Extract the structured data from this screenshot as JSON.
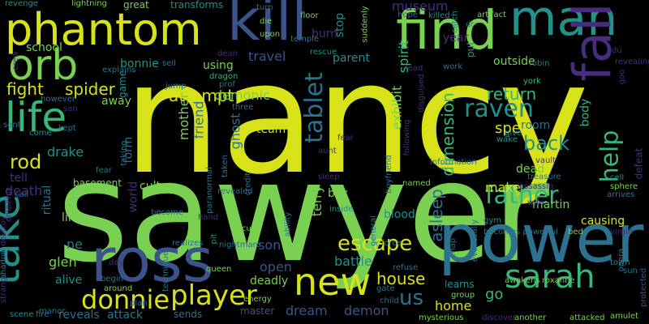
{
  "palette": {
    "background": "#000000",
    "yellow": "#d8e219",
    "lime": "#7ad151",
    "green": "#35b779",
    "teal": "#21918c",
    "blue": "#2c728e",
    "indigo": "#3b528b",
    "purple": "#472d7b",
    "violet": "#440154"
  },
  "words": [
    {
      "text": "nancy",
      "color": "#d8e219"
    },
    {
      "text": "sawyer",
      "color": "#7ad151"
    },
    {
      "text": "power",
      "color": "#2c728e"
    },
    {
      "text": "ross",
      "color": "#3b528b"
    },
    {
      "text": "kill",
      "color": "#3b528b"
    },
    {
      "text": "find",
      "color": "#7ad151"
    },
    {
      "text": "phantom",
      "color": "#d8e219"
    },
    {
      "text": "man",
      "color": "#21918c"
    },
    {
      "text": "orb",
      "color": "#7ad151"
    },
    {
      "text": "life",
      "color": "#35b779"
    },
    {
      "text": "fall",
      "color": "#472d7b"
    },
    {
      "text": "take",
      "color": "#21918c"
    },
    {
      "text": "new",
      "color": "#d8e219"
    },
    {
      "text": "sarah",
      "color": "#35b779"
    },
    {
      "text": "player",
      "color": "#d8e219"
    },
    {
      "text": "donnie",
      "color": "#d8e219"
    },
    {
      "text": "father",
      "color": "#35b779"
    },
    {
      "text": "raven",
      "color": "#21918c"
    },
    {
      "text": "tablet",
      "color": "#2c728e"
    },
    {
      "text": "help",
      "color": "#35b779"
    },
    {
      "text": "escape",
      "color": "#d8e219"
    },
    {
      "text": "attempt",
      "color": "#d8e219"
    },
    {
      "text": "fight",
      "color": "#d8e219"
    },
    {
      "text": "spider",
      "color": "#d8e219"
    },
    {
      "text": "rod",
      "color": "#d8e219"
    },
    {
      "text": "us",
      "color": "#2c728e"
    },
    {
      "text": "house",
      "color": "#d8e219"
    },
    {
      "text": "back",
      "color": "#21918c"
    },
    {
      "text": "dimension",
      "color": "#35b779"
    },
    {
      "text": "asleep",
      "color": "#2c728e"
    },
    {
      "text": "return",
      "color": "#35b779"
    },
    {
      "text": "spell",
      "color": "#d8e219"
    },
    {
      "text": "museum",
      "color": "#472d7b"
    },
    {
      "text": "travel",
      "color": "#3b528b"
    },
    {
      "text": "demonic",
      "color": "#7ad151"
    },
    {
      "text": "mother",
      "color": "#7ad151"
    },
    {
      "text": "friend",
      "color": "#2c728e"
    },
    {
      "text": "ghost",
      "color": "#2c728e"
    },
    {
      "text": "exhibit",
      "color": "#7ad151"
    },
    {
      "text": "spirit",
      "color": "#35b779"
    },
    {
      "text": "dream",
      "color": "#3b528b"
    },
    {
      "text": "demon",
      "color": "#3b528b"
    },
    {
      "text": "home",
      "color": "#d8e219"
    },
    {
      "text": "go",
      "color": "#35b779"
    },
    {
      "text": "terry",
      "color": "#7ad151"
    },
    {
      "text": "son",
      "color": "#3b528b"
    },
    {
      "text": "open",
      "color": "#3b528b"
    },
    {
      "text": "battle",
      "color": "#21918c"
    },
    {
      "text": "glen",
      "color": "#7ad151"
    },
    {
      "text": "ne",
      "color": "#2c728e"
    },
    {
      "text": "death",
      "color": "#472d7b"
    },
    {
      "text": "drake",
      "color": "#21918c"
    },
    {
      "text": "world",
      "color": "#472d7b"
    },
    {
      "text": "cult",
      "color": "#7ad151"
    },
    {
      "text": "make",
      "color": "#d8e219"
    },
    {
      "text": "dead",
      "color": "#7ad151"
    },
    {
      "text": "martin",
      "color": "#7ad151"
    },
    {
      "text": "causing",
      "color": "#d8e219"
    },
    {
      "text": "body",
      "color": "#35b779"
    },
    {
      "text": "deadly",
      "color": "#7ad151"
    },
    {
      "text": "alive",
      "color": "#21918c"
    },
    {
      "text": "like",
      "color": "#7ad151"
    },
    {
      "text": "team",
      "color": "#d8e219"
    },
    {
      "text": "box",
      "color": "#7ad151"
    },
    {
      "text": "blood",
      "color": "#21918c"
    },
    {
      "text": "outside",
      "color": "#7ad151"
    },
    {
      "text": "room",
      "color": "#2c728e"
    },
    {
      "text": "learns",
      "color": "#21918c"
    },
    {
      "text": "master",
      "color": "#3b528b"
    },
    {
      "text": "sends",
      "color": "#2c728e"
    },
    {
      "text": "reveals",
      "color": "#2c728e"
    },
    {
      "text": "attack",
      "color": "#2c728e"
    },
    {
      "text": "ritual",
      "color": "#2c728e"
    },
    {
      "text": "away",
      "color": "#7ad151"
    },
    {
      "text": "form",
      "color": "#2c728e"
    },
    {
      "text": "using",
      "color": "#7ad151"
    },
    {
      "text": "bonnie",
      "color": "#21918c"
    },
    {
      "text": "school",
      "color": "#7ad151"
    },
    {
      "text": "game",
      "color": "#21918c"
    },
    {
      "text": "parent",
      "color": "#21918c"
    },
    {
      "text": "year",
      "color": "#472d7b"
    },
    {
      "text": "burn",
      "color": "#472d7b"
    },
    {
      "text": "stop",
      "color": "#21918c"
    },
    {
      "text": "basement",
      "color": "#7ad151"
    },
    {
      "text": "tell",
      "color": "#472d7b"
    },
    {
      "text": "revenge",
      "color": "#21918c"
    },
    {
      "text": "lightning",
      "color": "#7ad151"
    },
    {
      "text": "great",
      "color": "#7ad151"
    },
    {
      "text": "transforms",
      "color": "#21918c"
    },
    {
      "text": "turn",
      "color": "#2c728e"
    },
    {
      "text": "floor",
      "color": "#7ad151"
    },
    {
      "text": "upon",
      "color": "#7ad151"
    },
    {
      "text": "temple",
      "color": "#2c728e"
    },
    {
      "text": "die",
      "color": "#7ad151"
    },
    {
      "text": "suddenly",
      "color": "#7ad151"
    },
    {
      "text": "hope",
      "color": "#2c728e"
    },
    {
      "text": "killed",
      "color": "#21918c"
    },
    {
      "text": "artifact",
      "color": "#7ad151"
    },
    {
      "text": "put",
      "color": "#21918c"
    },
    {
      "text": "york",
      "color": "#35b779"
    },
    {
      "text": "robin",
      "color": "#2c728e"
    },
    {
      "text": "dragon",
      "color": "#35b779"
    },
    {
      "text": "rescue",
      "color": "#21918c"
    },
    {
      "text": "work",
      "color": "#2c728e"
    },
    {
      "text": "lead",
      "color": "#472d7b"
    },
    {
      "text": "catch",
      "color": "#21918c"
    },
    {
      "text": "give",
      "color": "#21918c"
    },
    {
      "text": "wake",
      "color": "#21918c"
    },
    {
      "text": "named",
      "color": "#7ad151"
    },
    {
      "text": "boyfriend",
      "color": "#2c728e"
    },
    {
      "text": "general",
      "color": "#2c728e"
    },
    {
      "text": "inside",
      "color": "#21918c"
    },
    {
      "text": "treasure",
      "color": "#2c728e"
    },
    {
      "text": "vault",
      "color": "#472d7b"
    },
    {
      "text": "assassin",
      "color": "#472d7b"
    },
    {
      "text": "wife",
      "color": "#472d7b"
    },
    {
      "text": "cell",
      "color": "#21918c"
    },
    {
      "text": "sphere",
      "color": "#7ad151"
    },
    {
      "text": "arrives",
      "color": "#2c728e"
    },
    {
      "text": "defeat",
      "color": "#472d7b"
    },
    {
      "text": "virgin",
      "color": "#472d7b"
    },
    {
      "text": "bed",
      "color": "#7ad151"
    },
    {
      "text": "becomes powerful",
      "color": "#2c728e"
    },
    {
      "text": "gym",
      "color": "#21918c"
    },
    {
      "text": "refuse",
      "color": "#2c728e"
    },
    {
      "text": "gate",
      "color": "#2c728e"
    },
    {
      "text": "child",
      "color": "#2c728e"
    },
    {
      "text": "roxanne",
      "color": "#7ad151"
    },
    {
      "text": "awakens",
      "color": "#7ad151"
    },
    {
      "text": "town",
      "color": "#21918c"
    },
    {
      "text": "opera",
      "color": "#2c728e"
    },
    {
      "text": "sun",
      "color": "#2c728e"
    },
    {
      "text": "protected",
      "color": "#3b528b"
    },
    {
      "text": "amulet",
      "color": "#7ad151"
    },
    {
      "text": "attacked",
      "color": "#7ad151"
    },
    {
      "text": "another",
      "color": "#7ad151"
    },
    {
      "text": "discover",
      "color": "#472d7b"
    },
    {
      "text": "mysterious",
      "color": "#7ad151"
    },
    {
      "text": "group",
      "color": "#7ad151"
    },
    {
      "text": "map",
      "color": "#2c728e"
    },
    {
      "text": "energy",
      "color": "#7ad151"
    },
    {
      "text": "queen",
      "color": "#7ad151"
    },
    {
      "text": "plan",
      "color": "#2c728e"
    },
    {
      "text": "begin",
      "color": "#2c728e"
    },
    {
      "text": "around",
      "color": "#7ad151"
    },
    {
      "text": "day",
      "color": "#472d7b"
    },
    {
      "text": "technique",
      "color": "#2c728e"
    },
    {
      "text": "realizes",
      "color": "#2c728e"
    },
    {
      "text": "pit",
      "color": "#21918c"
    },
    {
      "text": "nightmare",
      "color": "#2c728e"
    },
    {
      "text": "ability",
      "color": "#2c728e"
    },
    {
      "text": "cut",
      "color": "#7ad151"
    },
    {
      "text": "hand",
      "color": "#472d7b"
    },
    {
      "text": "become",
      "color": "#2c728e"
    },
    {
      "text": "paranormal",
      "color": "#2c728e"
    },
    {
      "text": "credit",
      "color": "#2c728e"
    },
    {
      "text": "force",
      "color": "#2c728e"
    },
    {
      "text": "manor",
      "color": "#2c728e"
    },
    {
      "text": "scene",
      "color": "#21918c"
    },
    {
      "text": "fire",
      "color": "#2c728e"
    },
    {
      "text": "strange",
      "color": "#472d7b"
    },
    {
      "text": "shadow",
      "color": "#2c728e"
    },
    {
      "text": "destroy",
      "color": "#472d7b"
    },
    {
      "text": "emperor",
      "color": "#472d7b"
    },
    {
      "text": "call",
      "color": "#2c728e"
    },
    {
      "text": "sent",
      "color": "#2c728e"
    },
    {
      "text": "come",
      "color": "#21918c"
    },
    {
      "text": "kept",
      "color": "#2c728e"
    },
    {
      "text": "fear",
      "color": "#2c728e"
    },
    {
      "text": "taking",
      "color": "#2c728e"
    },
    {
      "text": "taken",
      "color": "#2c728e"
    },
    {
      "text": "three",
      "color": "#2c728e"
    },
    {
      "text": "revealed",
      "color": "#2c728e"
    },
    {
      "text": "prof",
      "color": "#2c728e"
    },
    {
      "text": "jump",
      "color": "#2c728e"
    },
    {
      "text": "however",
      "color": "#2c728e"
    },
    {
      "text": "explains",
      "color": "#2c728e"
    },
    {
      "text": "sell",
      "color": "#2c728e"
    },
    {
      "text": "dean",
      "color": "#472d7b"
    },
    {
      "text": "crew",
      "color": "#472d7b"
    },
    {
      "text": "revealing",
      "color": "#472d7b"
    },
    {
      "text": "du",
      "color": "#472d7b"
    },
    {
      "text": "dr",
      "color": "#2c728e"
    },
    {
      "text": "aunt",
      "color": "#472d7b"
    },
    {
      "text": "information",
      "color": "#2c728e"
    },
    {
      "text": "sleep",
      "color": "#472d7b"
    },
    {
      "text": "following",
      "color": "#472d7b"
    },
    {
      "text": "disguised",
      "color": "#472d7b"
    },
    {
      "text": "eventually",
      "color": "#2c728e"
    },
    {
      "text": "goo",
      "color": "#472d7b"
    },
    {
      "text": "san",
      "color": "#472d7b"
    },
    {
      "text": "fear",
      "color": "#472d7b"
    }
  ]
}
